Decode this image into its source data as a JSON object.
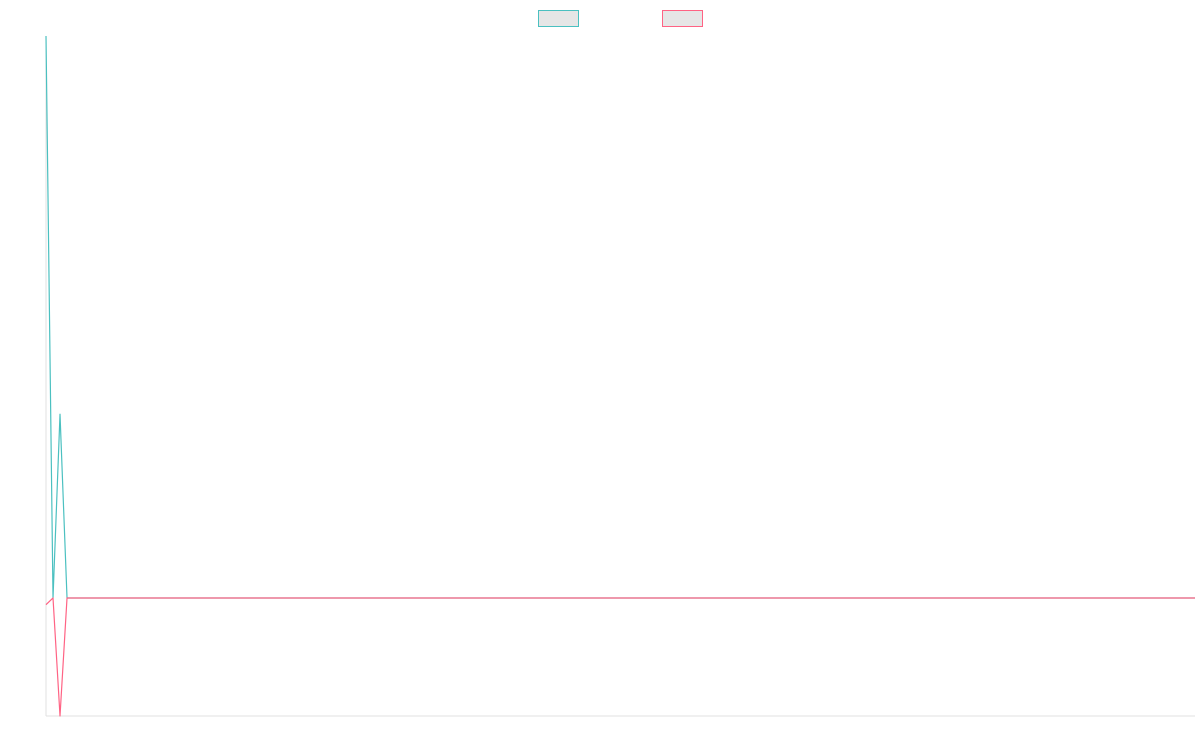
{
  "chart_data": {
    "type": "line",
    "x": [
      0,
      1,
      2,
      3,
      164
    ],
    "xlim": [
      0,
      164
    ],
    "ylim": [
      -0.21,
      1
    ],
    "grid": false,
    "legend": "top",
    "series": [
      {
        "color": "#4bc0c0",
        "values": [
          1,
          0,
          0.327,
          0,
          0
        ]
      },
      {
        "color": "#ff6384",
        "values": [
          -0.012,
          0,
          -0.21,
          0,
          0
        ]
      }
    ]
  }
}
